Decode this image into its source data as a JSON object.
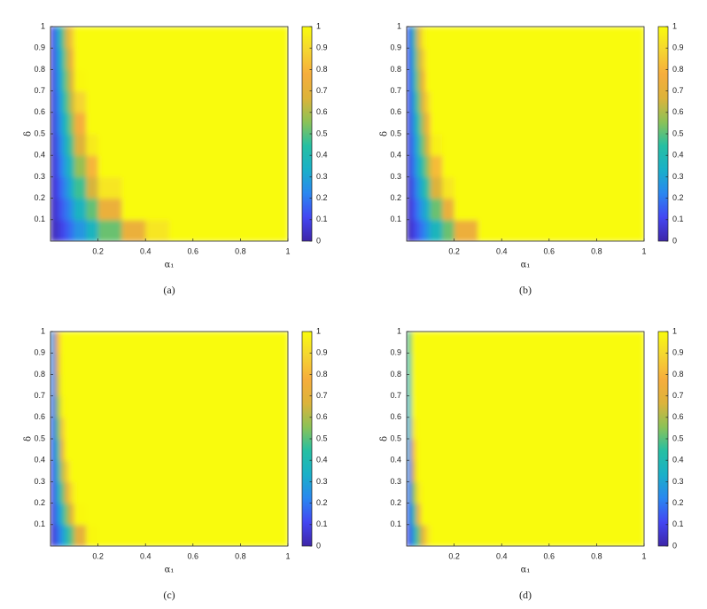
{
  "chart_data": [
    {
      "type": "heatmap",
      "caption": "(a)",
      "xlabel": "α₁",
      "ylabel": "δ",
      "x_edges": [
        0,
        0.02,
        0.04,
        0.06,
        0.08,
        0.1,
        0.15,
        0.2,
        0.3,
        0.4,
        0.5,
        0.6,
        0.7,
        1
      ],
      "y_edges": [
        0,
        0.1,
        0.2,
        0.3,
        0.4,
        0.5,
        0.6,
        0.7,
        0.8,
        0.9,
        1
      ],
      "values": [
        [
          0.02,
          0.06,
          0.1,
          0.15,
          0.19,
          0.26,
          0.36,
          0.52,
          0.73,
          0.94,
          1,
          1,
          1
        ],
        [
          0.03,
          0.09,
          0.15,
          0.2,
          0.26,
          0.36,
          0.51,
          0.73,
          1,
          1,
          1,
          1,
          1
        ],
        [
          0.04,
          0.11,
          0.19,
          0.26,
          0.34,
          0.47,
          0.66,
          0.94,
          1,
          1,
          1,
          1,
          1
        ],
        [
          0.05,
          0.14,
          0.23,
          0.32,
          0.41,
          0.57,
          0.8,
          1,
          1,
          1,
          1,
          1,
          1
        ],
        [
          0.05,
          0.16,
          0.27,
          0.38,
          0.49,
          0.68,
          0.95,
          1,
          1,
          1,
          1,
          1,
          1
        ],
        [
          0.06,
          0.19,
          0.31,
          0.44,
          0.56,
          0.78,
          1,
          1,
          1,
          1,
          1,
          1,
          1
        ],
        [
          0.07,
          0.21,
          0.35,
          0.5,
          0.64,
          0.89,
          1,
          1,
          1,
          1,
          1,
          1,
          1
        ],
        [
          0.08,
          0.24,
          0.4,
          0.55,
          0.71,
          0.99,
          1,
          1,
          1,
          1,
          1,
          1,
          1
        ],
        [
          0.09,
          0.26,
          0.44,
          0.61,
          0.79,
          1,
          1,
          1,
          1,
          1,
          1,
          1,
          1
        ],
        [
          0.1,
          0.29,
          0.48,
          0.67,
          0.86,
          1,
          1,
          1,
          1,
          1,
          1,
          1,
          1
        ]
      ],
      "xlim": [
        0,
        1
      ],
      "ylim": [
        0,
        1
      ],
      "xticks": [
        0.2,
        0.4,
        0.6,
        0.8,
        1
      ],
      "yticks": [
        0.1,
        0.2,
        0.3,
        0.4,
        0.5,
        0.6,
        0.7,
        0.8,
        0.9,
        1
      ],
      "clim": [
        0,
        1
      ],
      "cticks": [
        0,
        0.1,
        0.2,
        0.3,
        0.4,
        0.5,
        0.6,
        0.7,
        0.8,
        0.9,
        1
      ],
      "colormap": [
        "#3e26a8",
        "#4346f2",
        "#2a87f0",
        "#1ab0c8",
        "#26bfa2",
        "#8cc257",
        "#dcb33a",
        "#f6ad3c",
        "#f5d531",
        "#f9fb0e"
      ]
    },
    {
      "type": "heatmap",
      "caption": "(b)",
      "xlabel": "α₁",
      "ylabel": "δ",
      "x_edges": [
        0,
        0.02,
        0.04,
        0.06,
        0.08,
        0.1,
        0.15,
        0.2,
        0.3,
        0.4,
        0.5,
        0.6,
        0.7,
        1
      ],
      "y_edges": [
        0,
        0.1,
        0.2,
        0.3,
        0.4,
        0.5,
        0.6,
        0.7,
        0.8,
        0.9,
        1
      ],
      "values": [
        [
          0.03,
          0.09,
          0.15,
          0.21,
          0.27,
          0.37,
          0.52,
          0.74,
          1,
          1,
          1,
          1,
          1
        ],
        [
          0.04,
          0.13,
          0.21,
          0.29,
          0.37,
          0.52,
          0.73,
          1,
          1,
          1,
          1,
          1,
          1
        ],
        [
          0.05,
          0.16,
          0.27,
          0.37,
          0.48,
          0.67,
          0.94,
          1,
          1,
          1,
          1,
          1,
          1
        ],
        [
          0.07,
          0.2,
          0.33,
          0.46,
          0.59,
          0.82,
          1,
          1,
          1,
          1,
          1,
          1,
          1
        ],
        [
          0.08,
          0.23,
          0.39,
          0.54,
          0.7,
          0.97,
          1,
          1,
          1,
          1,
          1,
          1,
          1
        ],
        [
          0.09,
          0.27,
          0.45,
          0.62,
          0.8,
          1,
          1,
          1,
          1,
          1,
          1,
          1,
          1
        ],
        [
          0.1,
          0.3,
          0.51,
          0.71,
          0.91,
          1,
          1,
          1,
          1,
          1,
          1,
          1,
          1
        ],
        [
          0.11,
          0.34,
          0.57,
          0.79,
          1,
          1,
          1,
          1,
          1,
          1,
          1,
          1,
          1
        ],
        [
          0.12,
          0.37,
          0.62,
          0.87,
          1,
          1,
          1,
          1,
          1,
          1,
          1,
          1,
          1
        ],
        [
          0.14,
          0.41,
          0.68,
          0.96,
          1,
          1,
          1,
          1,
          1,
          1,
          1,
          1,
          1
        ]
      ],
      "xlim": [
        0,
        1
      ],
      "ylim": [
        0,
        1
      ],
      "xticks": [
        0.2,
        0.4,
        0.6,
        0.8,
        1
      ],
      "yticks": [
        0.1,
        0.2,
        0.3,
        0.4,
        0.5,
        0.6,
        0.7,
        0.8,
        0.9,
        1
      ],
      "clim": [
        0,
        1
      ],
      "cticks": [
        0,
        0.1,
        0.2,
        0.3,
        0.4,
        0.5,
        0.6,
        0.7,
        0.8,
        0.9,
        1
      ],
      "colormap": [
        "#3e26a8",
        "#4346f2",
        "#2a87f0",
        "#1ab0c8",
        "#26bfa2",
        "#8cc257",
        "#dcb33a",
        "#f6ad3c",
        "#f5d531",
        "#f9fb0e"
      ]
    },
    {
      "type": "heatmap",
      "caption": "(c)",
      "xlabel": "α₁",
      "ylabel": "δ",
      "x_edges": [
        0,
        0.02,
        0.04,
        0.06,
        0.08,
        0.1,
        0.15,
        0.2,
        0.3,
        0.4,
        0.5,
        0.6,
        0.7,
        1
      ],
      "y_edges": [
        0,
        0.1,
        0.2,
        0.3,
        0.4,
        0.5,
        0.6,
        0.7,
        0.8,
        0.9,
        1
      ],
      "values": [
        [
          0.06,
          0.17,
          0.28,
          0.4,
          0.51,
          0.71,
          0.99,
          1,
          1,
          1,
          1,
          1,
          1
        ],
        [
          0.08,
          0.24,
          0.4,
          0.56,
          0.72,
          0.99,
          1,
          1,
          1,
          1,
          1,
          1,
          1
        ],
        [
          0.1,
          0.31,
          0.51,
          0.72,
          0.92,
          1,
          1,
          1,
          1,
          1,
          1,
          1,
          1
        ],
        [
          0.12,
          0.38,
          0.62,
          0.88,
          1,
          1,
          1,
          1,
          1,
          1,
          1,
          1,
          1
        ],
        [
          0.15,
          0.44,
          0.74,
          1,
          1,
          1,
          1,
          1,
          1,
          1,
          1,
          1,
          1
        ],
        [
          0.17,
          0.51,
          0.85,
          1,
          1,
          1,
          1,
          1,
          1,
          1,
          1,
          1,
          1
        ],
        [
          0.19,
          0.58,
          0.97,
          1,
          1,
          1,
          1,
          1,
          1,
          1,
          1,
          1,
          1
        ],
        [
          0.22,
          0.65,
          1,
          1,
          1,
          1,
          1,
          1,
          1,
          1,
          1,
          1,
          1
        ],
        [
          0.24,
          0.72,
          1,
          1,
          1,
          1,
          1,
          1,
          1,
          1,
          1,
          1,
          1
        ],
        [
          0.26,
          0.78,
          1,
          1,
          1,
          1,
          1,
          1,
          1,
          1,
          1,
          1,
          1
        ]
      ],
      "xlim": [
        0,
        1
      ],
      "ylim": [
        0,
        1
      ],
      "xticks": [
        0.2,
        0.4,
        0.6,
        0.8,
        1
      ],
      "yticks": [
        0.1,
        0.2,
        0.3,
        0.4,
        0.5,
        0.6,
        0.7,
        0.8,
        0.9,
        1
      ],
      "clim": [
        0,
        1
      ],
      "cticks": [
        0,
        0.1,
        0.2,
        0.3,
        0.4,
        0.5,
        0.6,
        0.7,
        0.8,
        0.9,
        1
      ],
      "colormap": [
        "#3e26a8",
        "#4346f2",
        "#2a87f0",
        "#1ab0c8",
        "#26bfa2",
        "#8cc257",
        "#dcb33a",
        "#f6ad3c",
        "#f5d531",
        "#f9fb0e"
      ]
    },
    {
      "type": "heatmap",
      "caption": "(d)",
      "xlabel": "α₁",
      "ylabel": "δ",
      "x_edges": [
        0,
        0.02,
        0.04,
        0.06,
        0.08,
        0.1,
        0.15,
        0.2,
        0.3,
        0.4,
        0.5,
        0.6,
        0.7,
        1
      ],
      "y_edges": [
        0,
        0.1,
        0.2,
        0.3,
        0.4,
        0.5,
        0.6,
        0.7,
        0.8,
        0.9,
        1
      ],
      "values": [
        [
          0.1,
          0.31,
          0.52,
          0.73,
          0.94,
          1,
          1,
          1,
          1,
          1,
          1,
          1,
          1
        ],
        [
          0.15,
          0.44,
          0.73,
          1,
          1,
          1,
          1,
          1,
          1,
          1,
          1,
          1,
          1
        ],
        [
          0.19,
          0.56,
          0.94,
          1,
          1,
          1,
          1,
          1,
          1,
          1,
          1,
          1,
          1
        ],
        [
          0.23,
          0.69,
          1,
          1,
          1,
          1,
          1,
          1,
          1,
          1,
          1,
          1,
          1
        ],
        [
          0.27,
          0.81,
          1,
          1,
          1,
          1,
          1,
          1,
          1,
          1,
          1,
          1,
          1
        ],
        [
          0.31,
          0.94,
          1,
          1,
          1,
          1,
          1,
          1,
          1,
          1,
          1,
          1,
          1
        ],
        [
          0.35,
          1,
          1,
          1,
          1,
          1,
          1,
          1,
          1,
          1,
          1,
          1,
          1
        ],
        [
          0.4,
          1,
          1,
          1,
          1,
          1,
          1,
          1,
          1,
          1,
          1,
          1,
          1
        ],
        [
          0.44,
          1,
          1,
          1,
          1,
          1,
          1,
          1,
          1,
          1,
          1,
          1,
          1
        ],
        [
          0.48,
          1,
          1,
          1,
          1,
          1,
          1,
          1,
          1,
          1,
          1,
          1,
          1
        ]
      ],
      "xlim": [
        0,
        1
      ],
      "ylim": [
        0,
        1
      ],
      "xticks": [
        0.2,
        0.4,
        0.6,
        0.8,
        1
      ],
      "yticks": [
        0.1,
        0.2,
        0.3,
        0.4,
        0.5,
        0.6,
        0.7,
        0.8,
        0.9,
        1
      ],
      "clim": [
        0,
        1
      ],
      "cticks": [
        0,
        0.1,
        0.2,
        0.3,
        0.4,
        0.5,
        0.6,
        0.7,
        0.8,
        0.9,
        1
      ],
      "colormap": [
        "#3e26a8",
        "#4346f2",
        "#2a87f0",
        "#1ab0c8",
        "#26bfa2",
        "#8cc257",
        "#dcb33a",
        "#f6ad3c",
        "#f5d531",
        "#f9fb0e"
      ]
    }
  ]
}
